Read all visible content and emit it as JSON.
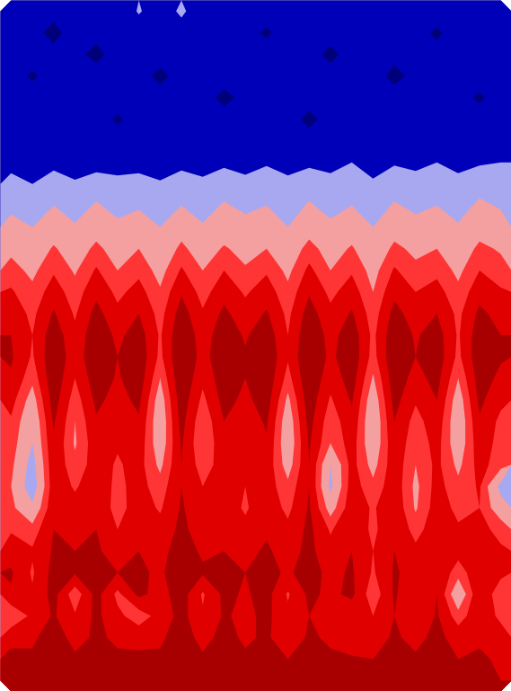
{
  "chart_data": {
    "type": "contour",
    "tick_labels": false,
    "levels": [
      0,
      1,
      2,
      3,
      4,
      4.7,
      5.5
    ],
    "colors": [
      "#00007a",
      "#0000b8",
      "#a8a8f0",
      "#f4a0a0",
      "#ff3535",
      "#e00000",
      "#a80000"
    ],
    "cells": [
      [
        1.2,
        1.3,
        1.2,
        1.1,
        1.3,
        1.2,
        2.1,
        1.4,
        2.2,
        1.3,
        2.0,
        1.2,
        1.3,
        1.2,
        1.1,
        1.3,
        1.2,
        1.3,
        1.2,
        1.1,
        1.3,
        1.2,
        1.3,
        1.2
      ],
      [
        1.3,
        1.2,
        0.8,
        1.3,
        1.2,
        1.3,
        1.4,
        1.2,
        1.5,
        1.2,
        1.3,
        1.2,
        0.9,
        1.3,
        1.2,
        1.3,
        1.1,
        1.2,
        1.3,
        1.2,
        0.9,
        1.3,
        1.2,
        1.3
      ],
      [
        1.2,
        1.3,
        1.2,
        1.2,
        0.8,
        1.3,
        1.2,
        1.3,
        1.2,
        1.1,
        1.3,
        1.2,
        1.3,
        1.2,
        1.3,
        0.8,
        1.3,
        1.2,
        1.2,
        1.3,
        1.2,
        1.3,
        1.2,
        1.3
      ],
      [
        1.3,
        0.9,
        1.3,
        1.2,
        1.3,
        1.2,
        1.3,
        0.8,
        1.3,
        1.2,
        1.3,
        1.3,
        1.2,
        1.3,
        1.2,
        1.3,
        1.2,
        1.3,
        0.8,
        1.2,
        1.3,
        1.2,
        1.3,
        1.2
      ],
      [
        1.2,
        1.3,
        1.2,
        1.3,
        1.2,
        1.3,
        1.2,
        1.3,
        1.2,
        1.3,
        0.8,
        1.2,
        1.3,
        1.2,
        1.3,
        1.2,
        1.3,
        1.2,
        1.3,
        1.2,
        1.3,
        1.2,
        0.9,
        1.3
      ],
      [
        1.3,
        1.2,
        1.3,
        1.2,
        1.3,
        0.9,
        1.3,
        1.2,
        1.3,
        1.2,
        1.3,
        1.2,
        1.3,
        1.3,
        0.8,
        1.3,
        1.2,
        1.3,
        1.2,
        1.3,
        1.2,
        1.3,
        1.3,
        1.4
      ],
      [
        1.4,
        1.3,
        1.2,
        1.3,
        1.3,
        1.3,
        1.4,
        1.3,
        1.2,
        1.3,
        1.3,
        1.4,
        1.3,
        1.5,
        1.3,
        1.4,
        1.3,
        1.5,
        1.3,
        1.4,
        1.3,
        1.6,
        1.4,
        1.5
      ],
      [
        1.6,
        1.5,
        1.7,
        1.6,
        1.5,
        1.7,
        1.6,
        1.5,
        1.7,
        1.6,
        1.8,
        1.6,
        1.9,
        1.7,
        1.8,
        1.7,
        2.0,
        1.7,
        1.9,
        1.8,
        2.0,
        1.8,
        1.9,
        2.0
      ],
      [
        2.4,
        2.0,
        2.5,
        2.1,
        2.6,
        2.2,
        2.4,
        2.1,
        2.5,
        2.2,
        2.6,
        2.3,
        2.5,
        2.2,
        2.6,
        2.3,
        2.5,
        2.1,
        2.6,
        2.3,
        2.5,
        2.2,
        2.6,
        2.4
      ],
      [
        2.8,
        2.5,
        3.0,
        2.6,
        3.1,
        2.7,
        2.9,
        2.5,
        3.0,
        2.6,
        3.1,
        2.8,
        3.0,
        2.6,
        3.1,
        2.7,
        3.0,
        2.5,
        3.1,
        2.8,
        3.0,
        2.6,
        3.2,
        2.9
      ],
      [
        3.3,
        3.0,
        3.5,
        3.1,
        3.6,
        3.2,
        3.4,
        3.0,
        3.6,
        3.1,
        3.5,
        3.3,
        3.5,
        3.0,
        3.6,
        3.2,
        3.5,
        3.0,
        3.6,
        3.3,
        3.5,
        3.1,
        3.6,
        3.4
      ],
      [
        3.8,
        3.4,
        4.1,
        3.5,
        4.2,
        3.6,
        4.0,
        3.3,
        4.2,
        3.5,
        4.1,
        3.7,
        4.0,
        3.4,
        4.3,
        3.6,
        4.1,
        3.3,
        4.2,
        3.8,
        4.0,
        3.4,
        4.2,
        3.9
      ],
      [
        4.3,
        3.8,
        4.6,
        3.9,
        4.8,
        4.0,
        4.5,
        3.7,
        4.8,
        4.0,
        4.7,
        4.1,
        4.6,
        3.8,
        4.9,
        4.0,
        4.6,
        3.7,
        4.8,
        4.2,
        4.5,
        3.8,
        4.7,
        4.3
      ],
      [
        4.8,
        4.2,
        5.1,
        4.3,
        5.3,
        4.5,
        5.0,
        4.1,
        5.4,
        4.4,
        5.2,
        4.6,
        5.1,
        4.2,
        5.4,
        4.5,
        5.1,
        4.0,
        5.3,
        4.7,
        5.0,
        4.2,
        5.2,
        4.8
      ],
      [
        5.2,
        4.5,
        5.6,
        4.6,
        5.8,
        4.9,
        5.5,
        4.4,
        5.9,
        4.8,
        5.7,
        5.0,
        5.6,
        4.5,
        5.9,
        4.9,
        5.6,
        4.3,
        5.8,
        5.1,
        5.5,
        4.5,
        5.7,
        5.2
      ],
      [
        5.5,
        4.7,
        6.0,
        4.9,
        6.1,
        5.3,
        5.9,
        4.6,
        6.2,
        5.1,
        6.0,
        5.4,
        6.0,
        4.7,
        6.2,
        5.2,
        6.0,
        4.5,
        6.1,
        5.4,
        5.9,
        4.6,
        6.0,
        5.5
      ],
      [
        5.6,
        4.6,
        6.2,
        5.0,
        6.2,
        5.5,
        6.1,
        4.5,
        6.3,
        5.2,
        6.1,
        5.6,
        6.2,
        4.8,
        6.3,
        5.3,
        6.1,
        4.4,
        6.2,
        5.5,
        6.0,
        4.5,
        6.1,
        5.6
      ],
      [
        5.4,
        4.2,
        6.1,
        4.7,
        6.0,
        5.4,
        6.0,
        4.0,
        6.2,
        4.9,
        6.0,
        5.5,
        6.1,
        4.4,
        6.2,
        5.0,
        5.9,
        3.9,
        6.0,
        5.2,
        5.8,
        4.0,
        5.9,
        5.3
      ],
      [
        5.0,
        3.6,
        5.9,
        4.3,
        5.7,
        5.2,
        5.7,
        3.5,
        6.0,
        4.5,
        5.8,
        5.3,
        5.9,
        3.8,
        6.0,
        4.6,
        5.6,
        3.4,
        5.8,
        4.8,
        5.5,
        3.5,
        5.7,
        4.9
      ],
      [
        4.6,
        3.2,
        5.6,
        4.0,
        5.4,
        5.0,
        5.4,
        3.3,
        5.8,
        4.1,
        5.5,
        5.1,
        5.6,
        3.4,
        5.8,
        4.2,
        5.3,
        3.2,
        5.5,
        4.4,
        5.2,
        3.3,
        5.4,
        4.5
      ],
      [
        4.4,
        3.0,
        5.4,
        3.9,
        5.2,
        4.8,
        5.2,
        3.4,
        5.6,
        4.0,
        5.3,
        4.9,
        5.4,
        3.3,
        5.6,
        4.0,
        5.1,
        3.3,
        5.3,
        4.2,
        5.0,
        3.4,
        5.2,
        4.4
      ],
      [
        4.2,
        2.6,
        5.3,
        4.2,
        5.1,
        4.6,
        5.0,
        3.8,
        5.5,
        4.3,
        5.1,
        4.8,
        5.2,
        3.6,
        5.5,
        3.0,
        5.0,
        3.7,
        5.2,
        4.0,
        4.9,
        3.8,
        5.0,
        4.3
      ],
      [
        4.0,
        2.4,
        5.2,
        4.6,
        5.2,
        4.5,
        5.0,
        4.3,
        5.5,
        4.7,
        5.0,
        4.7,
        5.1,
        4.2,
        5.5,
        2.8,
        5.1,
        4.2,
        5.2,
        3.8,
        5.0,
        4.2,
        4.8,
        2.7
      ],
      [
        4.2,
        3.2,
        5.3,
        5.0,
        5.3,
        4.4,
        5.1,
        4.6,
        5.6,
        4.9,
        5.1,
        4.6,
        5.2,
        4.5,
        5.6,
        3.6,
        5.2,
        4.6,
        5.3,
        3.9,
        5.1,
        4.5,
        4.7,
        3.4
      ],
      [
        4.6,
        4.3,
        5.5,
        5.3,
        5.5,
        4.7,
        5.3,
        5.0,
        5.7,
        5.1,
        5.3,
        4.9,
        5.4,
        4.9,
        5.7,
        4.6,
        5.4,
        4.5,
        5.4,
        4.4,
        5.2,
        4.8,
        4.9,
        4.5
      ],
      [
        5.2,
        4.8,
        5.6,
        5.5,
        5.6,
        5.2,
        5.5,
        5.3,
        5.8,
        5.4,
        5.5,
        5.3,
        5.6,
        5.2,
        5.7,
        5.0,
        5.5,
        4.7,
        5.5,
        4.9,
        5.3,
        5.0,
        5.1,
        4.8
      ],
      [
        5.6,
        4.6,
        5.8,
        5.6,
        5.8,
        5.5,
        5.6,
        5.4,
        5.9,
        5.6,
        5.6,
        5.5,
        5.7,
        5.4,
        5.8,
        5.3,
        5.6,
        4.6,
        5.6,
        5.2,
        5.4,
        4.3,
        5.3,
        4.9
      ],
      [
        5.4,
        4.8,
        5.8,
        4.2,
        5.8,
        4.5,
        5.7,
        5.2,
        5.9,
        4.6,
        5.7,
        5.4,
        5.8,
        4.6,
        5.7,
        5.3,
        5.7,
        4.2,
        5.6,
        4.9,
        5.5,
        3.2,
        5.4,
        4.2
      ],
      [
        4.0,
        4.9,
        5.6,
        4.8,
        5.7,
        4.9,
        4.3,
        5.0,
        5.8,
        4.8,
        5.6,
        5.3,
        5.7,
        4.9,
        5.5,
        5.2,
        4.9,
        4.7,
        5.5,
        4.7,
        5.6,
        4.3,
        5.3,
        4.5
      ],
      [
        5.3,
        5.4,
        5.8,
        5.3,
        5.6,
        5.4,
        5.2,
        5.4,
        5.8,
        5.3,
        5.7,
        5.4,
        5.6,
        5.1,
        5.6,
        5.4,
        5.0,
        5.2,
        5.6,
        5.3,
        5.7,
        5.2,
        5.4,
        5.1
      ],
      [
        5.7,
        5.6,
        5.9,
        5.6,
        5.8,
        5.6,
        5.7,
        5.6,
        5.9,
        5.6,
        5.8,
        5.6,
        5.8,
        5.5,
        5.8,
        5.6,
        5.6,
        5.5,
        5.8,
        5.6,
        5.8,
        5.5,
        5.6,
        5.4
      ],
      [
        5.8,
        5.7,
        5.9,
        5.7,
        5.9,
        5.7,
        5.8,
        5.7,
        6.0,
        5.7,
        5.9,
        5.7,
        5.9,
        5.6,
        5.9,
        5.7,
        5.8,
        5.6,
        5.9,
        5.7,
        5.9,
        5.6,
        5.7,
        5.5
      ]
    ]
  }
}
